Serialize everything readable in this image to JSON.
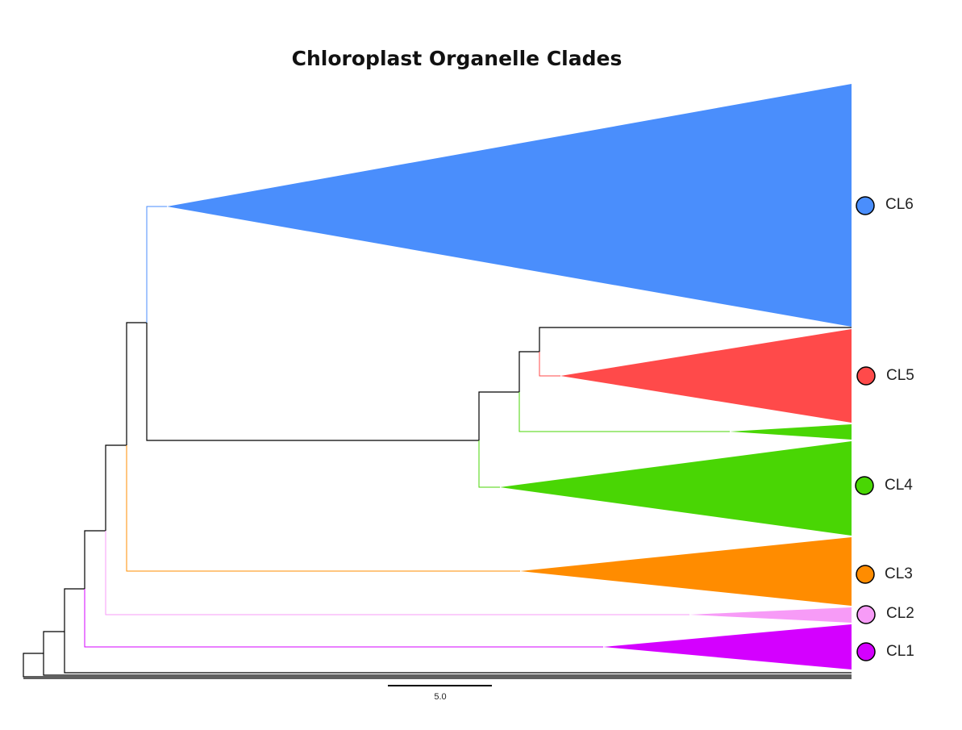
{
  "title": "Chloroplast Organelle Clades",
  "scale_bar": {
    "label": "5.0",
    "length": 5.0
  },
  "clades": [
    {
      "id": "CL6",
      "label": "CL6",
      "color": "#4a8efc"
    },
    {
      "id": "CL5",
      "label": "CL5",
      "color": "#ff4a4a"
    },
    {
      "id": "CL4",
      "label": "CL4",
      "color": "#49d604"
    },
    {
      "id": "CL3",
      "label": "CL3",
      "color": "#ff8c00"
    },
    {
      "id": "CL2",
      "label": "CL2",
      "color": "#f79bf7"
    },
    {
      "id": "CL1",
      "label": "CL1",
      "color": "#d400ff"
    }
  ],
  "branch_colors": {
    "default": "#000000"
  }
}
